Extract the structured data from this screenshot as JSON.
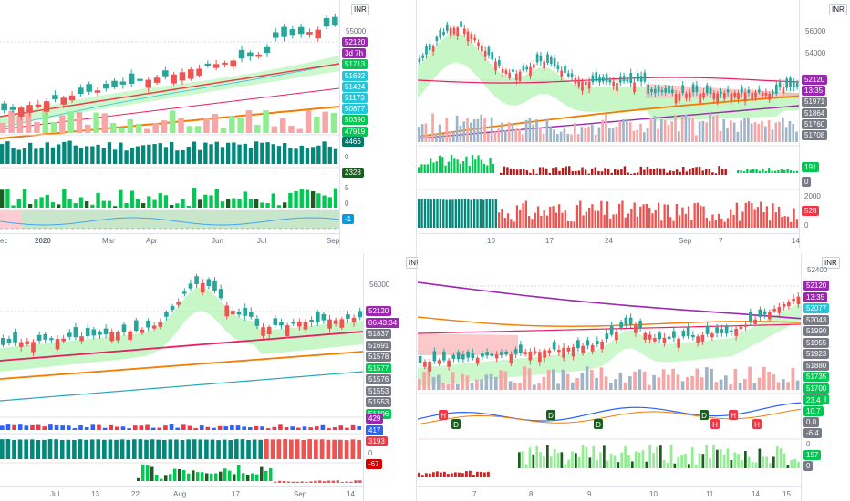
{
  "colors": {
    "up": "#26a69a",
    "down": "#ef5350",
    "upLight": "#90ee90",
    "downLight": "#f8a5a5",
    "orange": "#f57c00",
    "pink": "#e91e63",
    "purple": "#9c27b0",
    "teal": "#00897b",
    "cyan": "#26c6da",
    "green": "#00c853",
    "magenta": "#d500f9",
    "blue": "#2962ff",
    "red": "#f23645",
    "gray": "#787b86"
  },
  "panels": {
    "tl": {
      "currency": "INR",
      "price_ticks": [
        "55000"
      ],
      "price_tags": [
        {
          "text": "52120",
          "color": "#9c27b0"
        },
        {
          "text": "3d 7h",
          "color": "#9c27b0"
        },
        {
          "text": "51713",
          "color": "#00c853"
        },
        {
          "text": "51692",
          "color": "#26c6da"
        },
        {
          "text": "51424",
          "color": "#26c6da"
        },
        {
          "text": "51173",
          "color": "#26c6da"
        },
        {
          "text": "50877",
          "color": "#26c6da"
        },
        {
          "text": "50390",
          "color": "#00c853"
        },
        {
          "text": "47919",
          "color": "#00c853"
        }
      ],
      "sub_tags": [
        {
          "text": "4466",
          "color": "#00796b"
        },
        {
          "text": "0",
          "color": "none"
        },
        {
          "text": "2328",
          "color": "#1b5e20"
        },
        {
          "text": "5",
          "color": "none"
        },
        {
          "text": "0",
          "color": "none"
        },
        {
          "text": "-1",
          "color": "#039be5"
        }
      ],
      "x_labels": [
        "ec",
        "2020",
        "Mar",
        "Apr",
        "Jun",
        "Jul",
        "Sep"
      ]
    },
    "tr": {
      "currency": "INR",
      "price_ticks": [
        "56000",
        "54000"
      ],
      "price_tags": [
        {
          "text": "52120",
          "color": "#9c27b0"
        },
        {
          "text": "13:35",
          "color": "#9c27b0"
        },
        {
          "text": "51971",
          "color": "#787b86"
        },
        {
          "text": "51864",
          "color": "#787b86"
        },
        {
          "text": "51760",
          "color": "#787b86"
        },
        {
          "text": "51708",
          "color": "#787b86"
        }
      ],
      "sub_tags": [
        {
          "text": "191",
          "color": "#00c853"
        },
        {
          "text": "0",
          "color": "#787b86"
        },
        {
          "text": "2000",
          "color": "none"
        },
        {
          "text": "528",
          "color": "#f23645"
        },
        {
          "text": "0",
          "color": "none"
        }
      ],
      "x_labels": [
        "10",
        "17",
        "24",
        "Sep",
        "7",
        "14"
      ]
    },
    "bl": {
      "currency": "INR",
      "price_ticks": [
        "56000"
      ],
      "price_tags": [
        {
          "text": "52120",
          "color": "#9c27b0"
        },
        {
          "text": "06:43:34",
          "color": "#9c27b0"
        },
        {
          "text": "51837",
          "color": "#787b86"
        },
        {
          "text": "51691",
          "color": "#787b86"
        },
        {
          "text": "51578",
          "color": "#787b86"
        },
        {
          "text": "51577",
          "color": "#00c853"
        },
        {
          "text": "51576",
          "color": "#787b86"
        },
        {
          "text": "51553",
          "color": "#787b86"
        },
        {
          "text": "51553",
          "color": "#787b86"
        },
        {
          "text": "51496",
          "color": "#00c853"
        }
      ],
      "sub_tags": [
        {
          "text": "429",
          "color": "#9c27b0"
        },
        {
          "text": "417",
          "color": "#2962ff"
        },
        {
          "text": "3193",
          "color": "#f23645"
        },
        {
          "text": "0",
          "color": "none"
        },
        {
          "text": "-67",
          "color": "#d50000"
        }
      ],
      "x_labels": [
        "Jul",
        "13",
        "22",
        "Aug",
        "17",
        "Sep",
        "14"
      ]
    },
    "br": {
      "currency": "INR",
      "price_ticks": [
        "52400"
      ],
      "price_tags": [
        {
          "text": "52120",
          "color": "#9c27b0"
        },
        {
          "text": "13:35",
          "color": "#9c27b0"
        },
        {
          "text": "52077",
          "color": "#26c6da"
        },
        {
          "text": "52043",
          "color": "#787b86"
        },
        {
          "text": "51990",
          "color": "#787b86"
        },
        {
          "text": "51955",
          "color": "#787b86"
        },
        {
          "text": "51923",
          "color": "#787b86"
        },
        {
          "text": "51880",
          "color": "#787b86"
        },
        {
          "text": "51735",
          "color": "#00c853"
        },
        {
          "text": "51700",
          "color": "#00c853"
        },
        {
          "text": "51668",
          "color": "#00c853"
        }
      ],
      "sub_tags": [
        {
          "text": "23.4",
          "color": "#00c853"
        },
        {
          "text": "10.7",
          "color": "#00c853"
        },
        {
          "text": "0.0",
          "color": "#787b86"
        },
        {
          "text": "-6.4",
          "color": "#787b86"
        },
        {
          "text": "0",
          "color": "none"
        },
        {
          "text": "157",
          "color": "#00c853"
        },
        {
          "text": "0",
          "color": "#787b86"
        }
      ],
      "x_labels": [
        "7",
        "8",
        "9",
        "10",
        "11",
        "14",
        "15"
      ],
      "markers": [
        "H",
        "D",
        "D",
        "D",
        "D",
        "H",
        "H",
        "H"
      ]
    }
  }
}
